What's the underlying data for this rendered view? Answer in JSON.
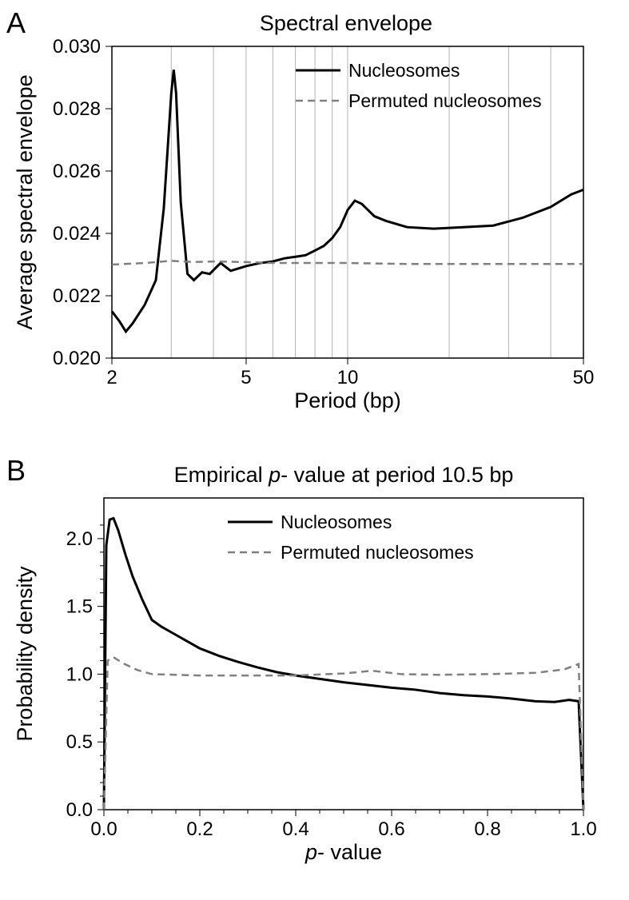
{
  "panelA": {
    "label": "A",
    "title": "Spectral envelope",
    "xlabel": "Period (bp)",
    "ylabel": "Average spectral envelope",
    "type": "line",
    "xscale": "log",
    "xlim": [
      2,
      50
    ],
    "ylim": [
      0.02,
      0.03
    ],
    "xticks_major": [
      2,
      5,
      10,
      50
    ],
    "xticks_minor": [
      3,
      4,
      6,
      7,
      8,
      9,
      20,
      30,
      40
    ],
    "yticks": [
      0.02,
      0.022,
      0.024,
      0.026,
      0.028,
      0.03
    ],
    "ytick_labels": [
      "0.020",
      "0.022",
      "0.024",
      "0.026",
      "0.028",
      "0.030"
    ],
    "background_color": "#ffffff",
    "grid_color": "#b3b3b3",
    "series": [
      {
        "name": "Nucleosomes",
        "color": "#000000",
        "line_width": 3,
        "dash": "solid",
        "x": [
          2.0,
          2.1,
          2.2,
          2.3,
          2.5,
          2.7,
          2.85,
          3.0,
          3.05,
          3.1,
          3.2,
          3.35,
          3.5,
          3.7,
          3.9,
          4.2,
          4.5,
          5.0,
          5.5,
          6.0,
          6.5,
          7.0,
          7.5,
          8.0,
          8.5,
          9.0,
          9.5,
          10.0,
          10.5,
          11.0,
          12.0,
          13.0,
          15.0,
          18.0,
          22.0,
          27.0,
          33.0,
          40.0,
          46.0,
          50.0
        ],
        "y": [
          0.0215,
          0.0212,
          0.02085,
          0.0211,
          0.0217,
          0.0225,
          0.0248,
          0.0285,
          0.02925,
          0.0285,
          0.025,
          0.0227,
          0.0225,
          0.02275,
          0.0227,
          0.02305,
          0.0228,
          0.02295,
          0.02305,
          0.0231,
          0.0232,
          0.02325,
          0.0233,
          0.02345,
          0.0236,
          0.02385,
          0.0242,
          0.02475,
          0.02505,
          0.02495,
          0.02455,
          0.0244,
          0.0242,
          0.02415,
          0.0242,
          0.02425,
          0.0245,
          0.02485,
          0.02525,
          0.0254
        ]
      },
      {
        "name": "Permuted nucleosomes",
        "color": "#808080",
        "line_width": 2.5,
        "dash": "dashed",
        "x": [
          2.0,
          2.5,
          3.0,
          3.5,
          4.0,
          5.0,
          6.0,
          8.0,
          10.0,
          15.0,
          20.0,
          30.0,
          40.0,
          50.0
        ],
        "y": [
          0.023,
          0.02305,
          0.02312,
          0.02308,
          0.0231,
          0.02308,
          0.02305,
          0.02305,
          0.02305,
          0.02302,
          0.02302,
          0.02302,
          0.02302,
          0.02302
        ]
      }
    ],
    "legend": {
      "items": [
        "Nucleosomes",
        "Permuted nucleosomes"
      ],
      "position": "upper-right"
    },
    "title_fontsize": 27,
    "label_fontsize": 27,
    "tick_fontsize": 24,
    "legend_fontsize": 23
  },
  "panelB": {
    "label": "B",
    "title_prefix": "Empirical ",
    "title_mid": "p",
    "title_suffix": "- value at period 10.5 bp",
    "xlabel_prefix": "",
    "xlabel_mid": "p",
    "xlabel_suffix": "- value",
    "ylabel": "Probability density",
    "type": "line",
    "xscale": "linear",
    "xlim": [
      0.0,
      1.0
    ],
    "ylim": [
      0.0,
      2.3
    ],
    "xticks": [
      0.0,
      0.2,
      0.4,
      0.6,
      0.8,
      1.0
    ],
    "xtick_labels": [
      "0.0",
      "0.2",
      "0.4",
      "0.6",
      "0.8",
      "1.0"
    ],
    "yticks": [
      0.0,
      0.5,
      1.0,
      1.5,
      2.0
    ],
    "ytick_labels": [
      "0.0",
      "0.5",
      "1.0",
      "1.5",
      "2.0"
    ],
    "background_color": "#ffffff",
    "series": [
      {
        "name": "Nucleosomes",
        "color": "#000000",
        "line_width": 3,
        "dash": "solid",
        "x": [
          0.0,
          0.005,
          0.012,
          0.02,
          0.03,
          0.045,
          0.06,
          0.08,
          0.1,
          0.12,
          0.14,
          0.17,
          0.2,
          0.24,
          0.28,
          0.32,
          0.36,
          0.4,
          0.45,
          0.5,
          0.55,
          0.6,
          0.65,
          0.7,
          0.75,
          0.8,
          0.85,
          0.9,
          0.94,
          0.97,
          0.99,
          1.0
        ],
        "y": [
          0.0,
          1.95,
          2.14,
          2.15,
          2.06,
          1.88,
          1.72,
          1.55,
          1.4,
          1.35,
          1.31,
          1.25,
          1.19,
          1.135,
          1.09,
          1.05,
          1.015,
          0.99,
          0.965,
          0.94,
          0.92,
          0.9,
          0.885,
          0.86,
          0.845,
          0.835,
          0.82,
          0.8,
          0.795,
          0.81,
          0.8,
          0.0
        ]
      },
      {
        "name": "Permuted nucleosomes",
        "color": "#808080",
        "line_width": 2.5,
        "dash": "dashed",
        "x": [
          0.0,
          0.008,
          0.02,
          0.04,
          0.07,
          0.1,
          0.15,
          0.2,
          0.3,
          0.4,
          0.5,
          0.56,
          0.62,
          0.7,
          0.8,
          0.9,
          0.96,
          0.99,
          1.0
        ],
        "y": [
          0.0,
          1.1,
          1.125,
          1.08,
          1.03,
          1.0,
          0.995,
          0.99,
          0.99,
          0.99,
          1.005,
          1.025,
          1.0,
          0.995,
          1.0,
          1.01,
          1.035,
          1.075,
          0.0
        ]
      }
    ],
    "legend": {
      "items": [
        "Nucleosomes",
        "Permuted nucleosomes"
      ],
      "position": "upper-center-right"
    },
    "title_fontsize": 27,
    "label_fontsize": 27,
    "tick_fontsize": 24,
    "legend_fontsize": 23
  }
}
